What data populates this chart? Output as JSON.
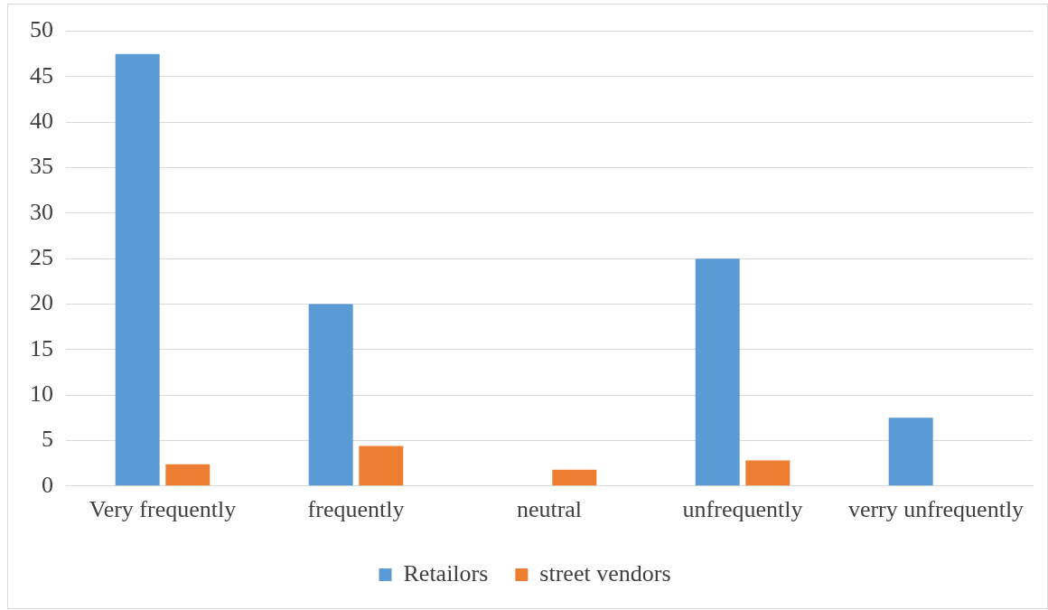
{
  "chart_data": {
    "type": "bar",
    "categories": [
      "Very frequently",
      "frequently",
      "neutral",
      "unfrequently",
      "verry unfrequently"
    ],
    "series": [
      {
        "name": "Retailors",
        "color": "#5b9bd5",
        "values": [
          47.5,
          20,
          0,
          25,
          7.5
        ]
      },
      {
        "name": "street vendors",
        "color": "#ed7d31",
        "values": [
          2.4,
          4.4,
          1.8,
          2.8,
          0
        ]
      }
    ],
    "ylim": [
      0,
      50
    ],
    "yticks": [
      0,
      5,
      10,
      15,
      20,
      25,
      30,
      35,
      40,
      45,
      50
    ],
    "grid": "y",
    "legend": "bottom"
  }
}
